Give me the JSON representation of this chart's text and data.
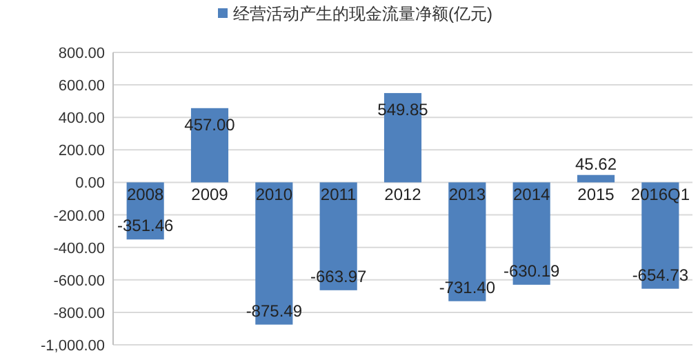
{
  "chart_data": {
    "type": "bar",
    "categories": [
      "2008",
      "2009",
      "2010",
      "2011",
      "2012",
      "2013",
      "2014",
      "2015",
      "2016Q1"
    ],
    "series": [
      {
        "name": "经营活动产生的现金流量净额(亿元)",
        "color": "#4f81bd",
        "values": [
          -351.46,
          457.0,
          -875.49,
          -663.97,
          549.85,
          -731.4,
          -630.19,
          45.62,
          -654.73
        ],
        "value_labels": [
          "-351.46",
          "457.00",
          "-875.49",
          "-663.97",
          "549.85",
          "-731.40",
          "-630.19",
          "45.62",
          "-654.73"
        ]
      }
    ],
    "ylim": [
      -1000,
      800
    ],
    "yticks": [
      {
        "value": -1000,
        "label": "-1,000.00"
      },
      {
        "value": -800,
        "label": "-800.00"
      },
      {
        "value": -600,
        "label": "-600.00"
      },
      {
        "value": -400,
        "label": "-400.00"
      },
      {
        "value": -200,
        "label": "-200.00"
      },
      {
        "value": 0,
        "label": "0.00"
      },
      {
        "value": 200,
        "label": "200.00"
      },
      {
        "value": 400,
        "label": "400.00"
      },
      {
        "value": 600,
        "label": "600.00"
      },
      {
        "value": 800,
        "label": "800.00"
      }
    ],
    "grid": "y",
    "legend": "top"
  }
}
